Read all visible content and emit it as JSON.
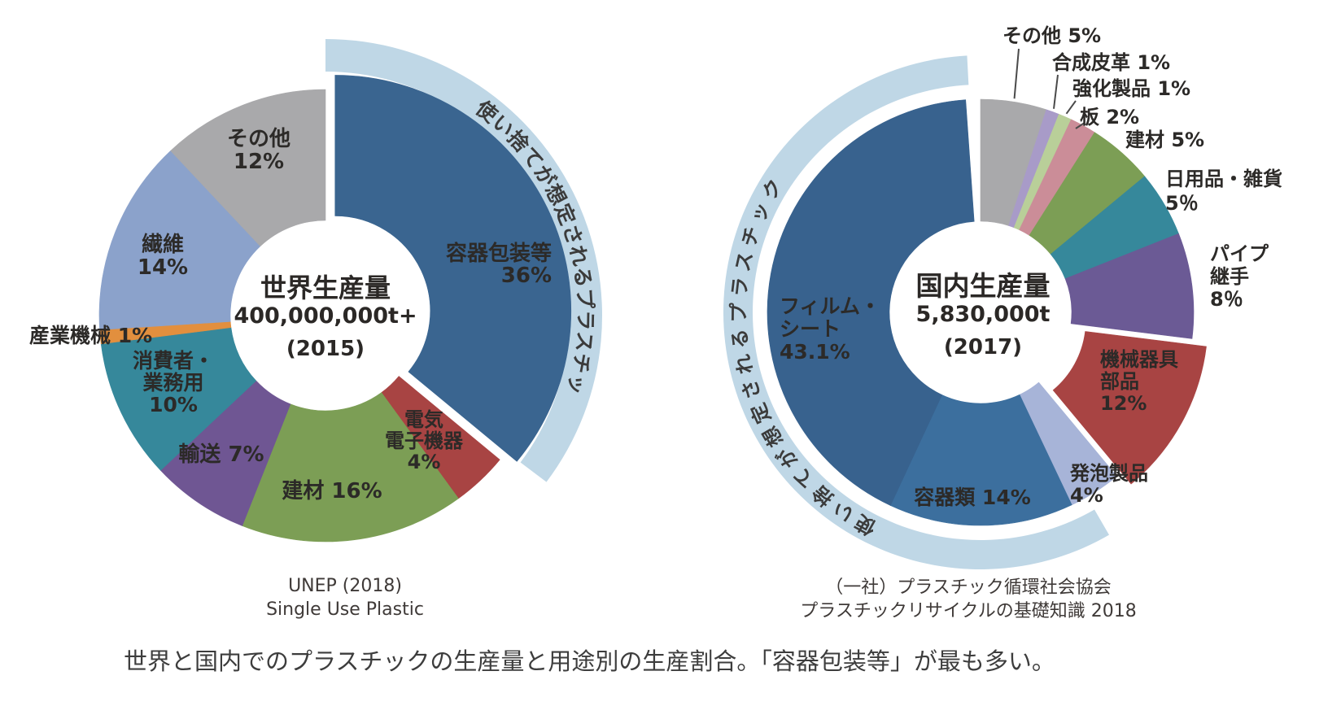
{
  "page": {
    "background": "#ffffff",
    "caption": "世界と国内でのプラスチックの生産量と用途別の生産割合。「容器包装等」が最も多い。"
  },
  "chart_data": [
    {
      "type": "pie",
      "variant": "exploded-donut",
      "name": "world-production-donut",
      "title": "世界生産量 400,000,000t+ (2015)",
      "center_label": {
        "title": "世界生産量",
        "amount": "400,000,000t+",
        "year": "(2015)"
      },
      "ring_annotation": {
        "text": "使い捨てが想定されるプラスチック",
        "band_color": "#bfd7e6",
        "covers_categories": [
          "容器包装等"
        ]
      },
      "legend": "none",
      "label_placement": "inside slices; 産業機械 outside left",
      "source_lines": [
        "UNEP (2018)",
        "Single Use Plastic"
      ],
      "slices": [
        {
          "label": "容器包装等",
          "value": 36,
          "display": [
            "容器包装等",
            "36%"
          ],
          "color": "#3a6590",
          "exploded": true
        },
        {
          "label": "電気電子機器",
          "value": 4,
          "display": [
            "電気",
            "電子機器",
            "4%"
          ],
          "color": "#a84443",
          "exploded": false
        },
        {
          "label": "建材",
          "value": 16,
          "display": [
            "建材 16%"
          ],
          "color": "#7c9e55",
          "exploded": false
        },
        {
          "label": "輸送",
          "value": 7,
          "display": [
            "輸送 7%"
          ],
          "color": "#6f5693",
          "exploded": false
        },
        {
          "label": "消費者・業務用",
          "value": 10,
          "display": [
            "消費者・",
            "業務用",
            "10%"
          ],
          "color": "#36889b",
          "exploded": false
        },
        {
          "label": "産業機械",
          "value": 1,
          "display": [
            "産業機械 1%"
          ],
          "color": "#e28f3e",
          "exploded": false
        },
        {
          "label": "繊維",
          "value": 14,
          "display": [
            "繊維",
            "14%"
          ],
          "color": "#8ba2cb",
          "exploded": false
        },
        {
          "label": "その他",
          "value": 12,
          "display": [
            "その他",
            "12%"
          ],
          "color": "#a9a9ab",
          "exploded": false
        }
      ]
    },
    {
      "type": "pie",
      "variant": "exploded-donut",
      "name": "domestic-production-donut",
      "title": "国内生産量 5,830,000t (2017)",
      "center_label": {
        "title": "国内生産量",
        "amount": "5,830,000t",
        "year": "(2017)"
      },
      "ring_annotation": {
        "text": "使い捨てが想定されるプラスチック",
        "band_color": "#bfd7e6",
        "covers_categories": [
          "容器類",
          "フィルム・シート"
        ]
      },
      "legend": "none",
      "label_placement": "small slices labeled outside top with leader lines",
      "source_lines": [
        "（一社）プラスチック循環社会協会",
        "プラスチックリサイクルの基礎知識 2018"
      ],
      "slices": [
        {
          "label": "その他",
          "value": 5,
          "display": [
            "その他 5%"
          ],
          "color": "#a9a9ab",
          "exploded": false
        },
        {
          "label": "合成皮革",
          "value": 1,
          "display": [
            "合成皮革 1%"
          ],
          "color": "#a89bc8",
          "exploded": false
        },
        {
          "label": "強化製品",
          "value": 1,
          "display": [
            "強化製品 1%"
          ],
          "color": "#b9cf99",
          "exploded": false
        },
        {
          "label": "板",
          "value": 2,
          "display": [
            "板 2%"
          ],
          "color": "#cb8d98",
          "exploded": false
        },
        {
          "label": "建材",
          "value": 5,
          "display": [
            "建材 5%"
          ],
          "color": "#7c9e55",
          "exploded": false
        },
        {
          "label": "日用品・雑貨",
          "value": 5,
          "display": [
            "日用品・雑貨",
            "5％"
          ],
          "color": "#36889b",
          "exploded": false
        },
        {
          "label": "パイプ継手",
          "value": 8,
          "display": [
            "パイプ",
            "継手",
            "8％"
          ],
          "color": "#6b5a95",
          "exploded": false
        },
        {
          "label": "機械器具部品",
          "value": 12,
          "display": [
            "機械器具",
            "部品",
            "12%"
          ],
          "color": "#a84443",
          "exploded": true
        },
        {
          "label": "発泡製品",
          "value": 4,
          "display": [
            "発泡製品",
            "4%"
          ],
          "color": "#a7b4d8",
          "exploded": false
        },
        {
          "label": "容器類",
          "value": 14,
          "display": [
            "容器類 14%"
          ],
          "color": "#3c6f9e",
          "exploded": false
        },
        {
          "label": "フィルム・シート",
          "value": 43.1,
          "display": [
            "フィルム・",
            "シート",
            "43.1%"
          ],
          "color": "#38628e",
          "exploded": false
        }
      ]
    }
  ]
}
